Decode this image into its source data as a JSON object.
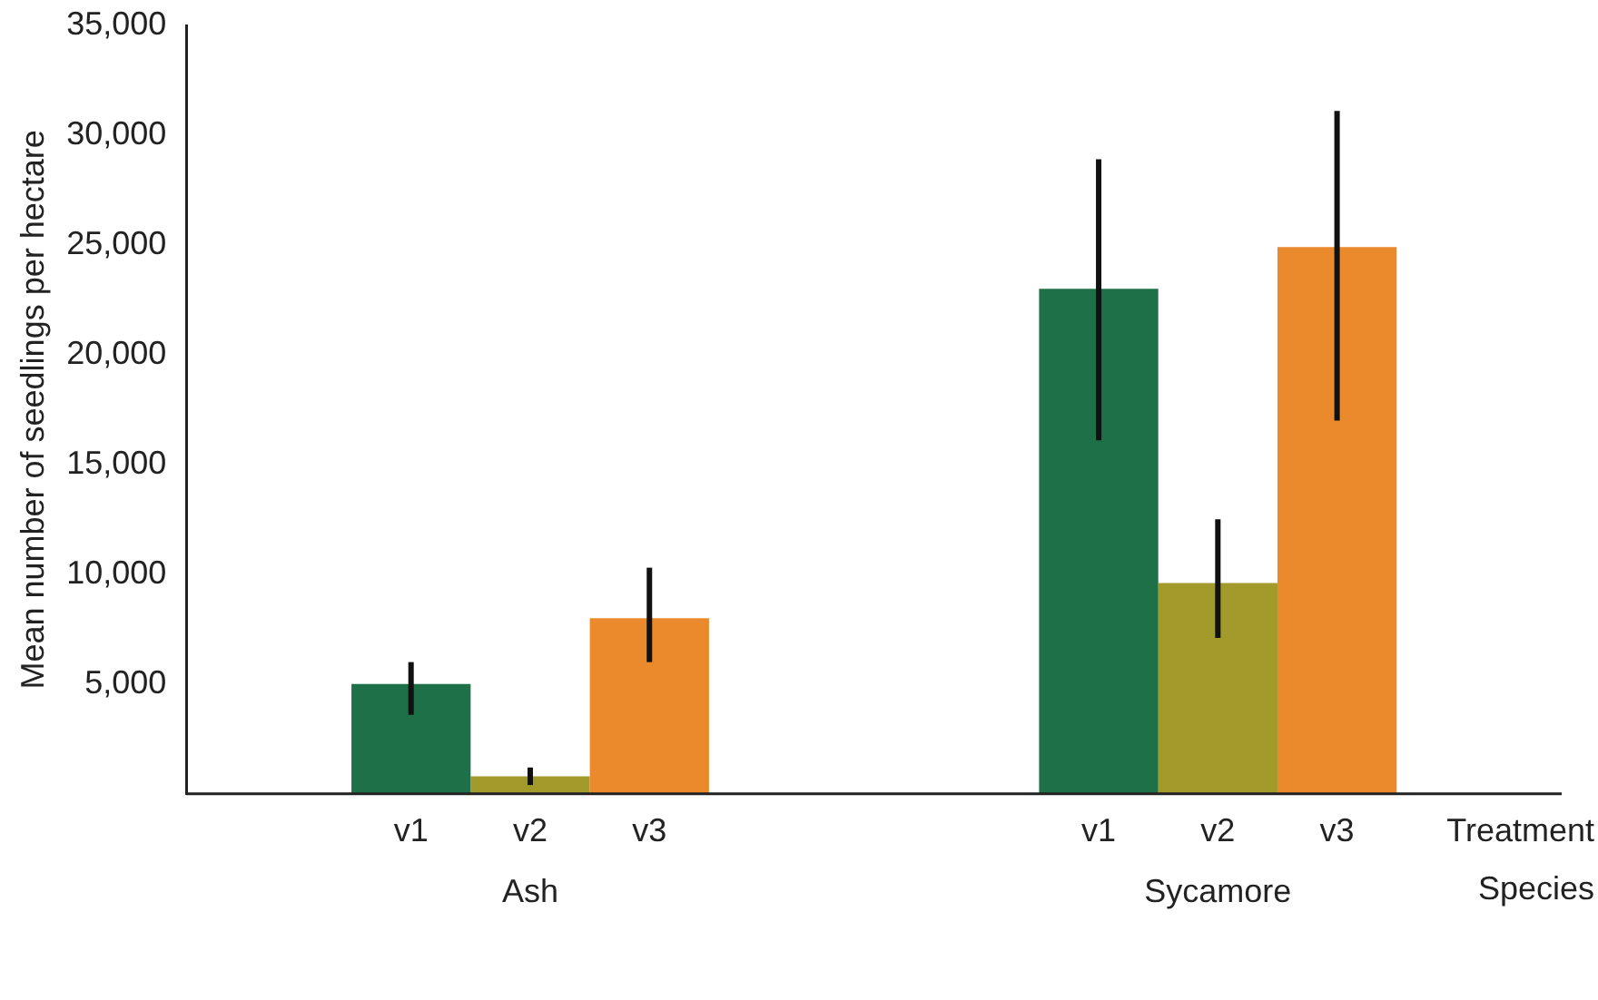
{
  "chart_data": {
    "type": "bar",
    "ylabel": "Mean number of seedlings per hectare",
    "categories": [
      "Ash",
      "Sycamore"
    ],
    "series": [
      {
        "name": "v1",
        "color": "#1e7048",
        "values": [
          5000,
          23000
        ],
        "errors": [
          [
            3600,
            6000
          ],
          [
            16100,
            28900
          ]
        ]
      },
      {
        "name": "v2",
        "color": "#a39a2c",
        "values": [
          800,
          9600
        ],
        "errors": [
          [
            400,
            1200
          ],
          [
            7100,
            12500
          ]
        ]
      },
      {
        "name": "v3",
        "color": "#ea8a2c",
        "values": [
          8000,
          24900
        ],
        "errors": [
          [
            6000,
            10300
          ],
          [
            17000,
            31100
          ]
        ]
      }
    ],
    "ylim": [
      0,
      35000
    ],
    "yticks": [
      {
        "value": 5000,
        "label": "5,000"
      },
      {
        "value": 10000,
        "label": "10,000"
      },
      {
        "value": 15000,
        "label": "15,000"
      },
      {
        "value": 20000,
        "label": "20,000"
      },
      {
        "value": 25000,
        "label": "25,000"
      },
      {
        "value": 30000,
        "label": "30,000"
      },
      {
        "value": 35000,
        "label": "35,000"
      }
    ],
    "annotations": [
      "Treatment",
      "Species"
    ],
    "grid": false,
    "legend": false
  }
}
